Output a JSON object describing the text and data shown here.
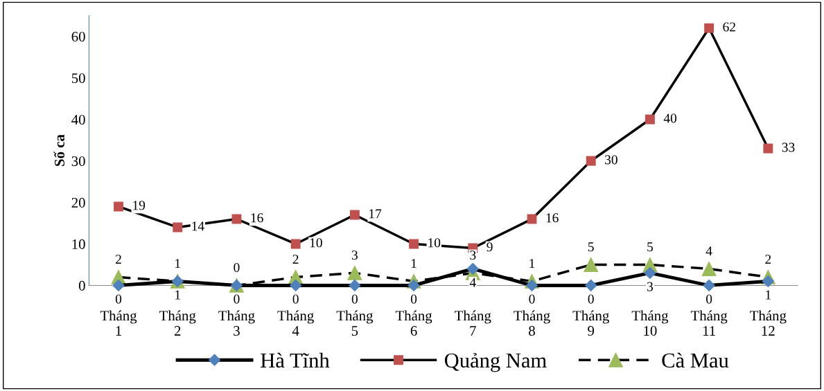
{
  "chart_data": {
    "type": "line",
    "ylabel": "Số ca",
    "categories": [
      "Tháng\n1",
      "Tháng\n2",
      "Tháng\n3",
      "Tháng\n4",
      "Tháng\n5",
      "Tháng\n6",
      "Tháng\n7",
      "Tháng\n8",
      "Tháng\n9",
      "Tháng\n10",
      "Tháng\n11",
      "Tháng\n12"
    ],
    "series": [
      {
        "name": "Hà Tĩnh",
        "color": "#4f81bd",
        "marker": "diamond",
        "line_style": "solid",
        "values": [
          0,
          1,
          0,
          0,
          0,
          0,
          4,
          0,
          0,
          3,
          0,
          1
        ]
      },
      {
        "name": "Quảng Nam",
        "color": "#c0504d",
        "marker": "square",
        "line_style": "solid",
        "values": [
          19,
          14,
          16,
          10,
          17,
          10,
          9,
          16,
          30,
          40,
          62,
          33
        ]
      },
      {
        "name": "Cà Mau",
        "color": "#9bbb59",
        "marker": "triangle",
        "line_style": "dashed",
        "values": [
          2,
          1,
          0,
          2,
          3,
          1,
          3,
          1,
          5,
          5,
          4,
          2
        ]
      }
    ],
    "ylim": [
      0,
      65
    ],
    "yticks": [
      0,
      10,
      20,
      30,
      40,
      50,
      60
    ],
    "data_labels": true,
    "grid": false,
    "legend": "bottom"
  }
}
